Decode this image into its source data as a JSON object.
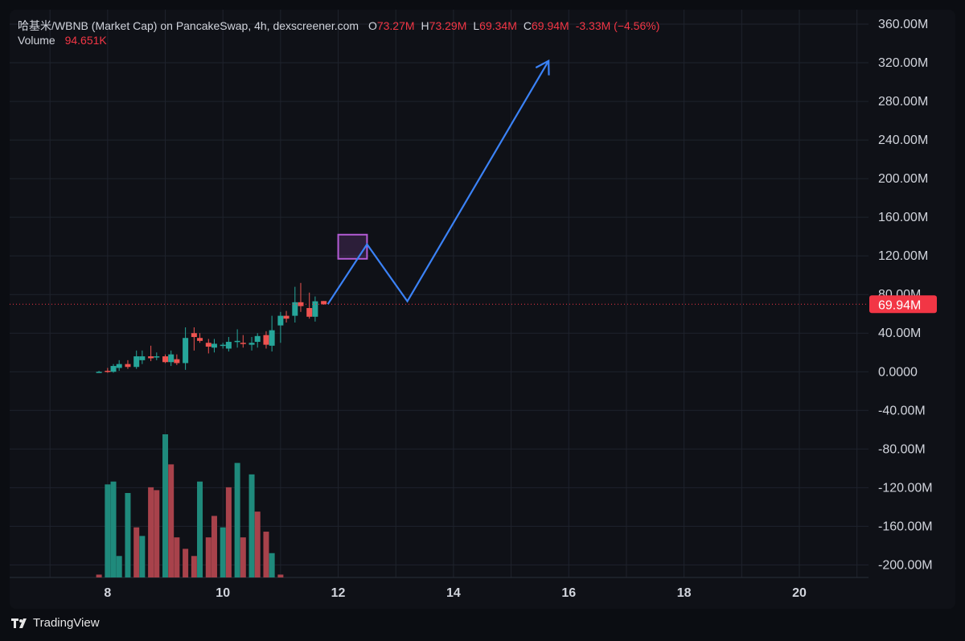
{
  "header": {
    "symbol_line": "哈基米/WBNB (Market Cap) on PancakeSwap, 4h, dexscreener.com",
    "ohlc": [
      {
        "key": "O",
        "value": "73.27M"
      },
      {
        "key": "H",
        "value": "73.29M"
      },
      {
        "key": "L",
        "value": "69.34M"
      },
      {
        "key": "C",
        "value": "69.94M"
      },
      {
        "key": "",
        "value": "-3.33M (−4.56%)"
      }
    ],
    "volume_label": "Volume",
    "volume_value": "94.651K"
  },
  "brand": "TradingView",
  "colors": {
    "up": "#26a69a",
    "down": "#ef5350",
    "volume_up": "#1f8a7c",
    "volume_down": "#a8424b",
    "projection": "#3b82f6",
    "target_box": "#b45cd6",
    "price_marker": "#f23645",
    "grid": "#1f232d",
    "axis_text": "#d1d4dc"
  },
  "chart_data": {
    "type": "candlestick",
    "title": "哈基米/WBNB (Market Cap) on PancakeSwap, 4h, dexscreener.com",
    "x_unit": "day",
    "x_ticks": [
      8,
      10,
      12,
      14,
      16,
      18,
      20
    ],
    "y_ticks": [
      -200,
      -160,
      -120,
      -80,
      -40,
      0,
      40,
      80,
      120,
      160,
      200,
      240,
      280,
      320,
      360
    ],
    "y_tick_labels": [
      "-200.00M",
      "-160.00M",
      "-120.00M",
      "-80.00M",
      "-40.00M",
      "0.0000",
      "40.00M",
      "80.00M",
      "120.00M",
      "160.00M",
      "200.00M",
      "240.00M",
      "280.00M",
      "320.00M",
      "360.00M"
    ],
    "y_unit": "M (market cap)",
    "ylim": [
      -213,
      375
    ],
    "xlim": [
      6.3,
      21.2
    ],
    "grid": true,
    "last_price": {
      "value": 69.94,
      "label": "69.94M"
    },
    "candles": [
      {
        "t": 7.85,
        "o": 0,
        "h": 1,
        "l": -1,
        "c": 0
      },
      {
        "t": 8.0,
        "o": 1,
        "h": 4,
        "l": -1,
        "c": 0
      },
      {
        "t": 8.1,
        "o": 0,
        "h": 8,
        "l": -1,
        "c": 6
      },
      {
        "t": 8.2,
        "o": 4,
        "h": 12,
        "l": 1,
        "c": 8
      },
      {
        "t": 8.35,
        "o": 8,
        "h": 12,
        "l": 3,
        "c": 5
      },
      {
        "t": 8.5,
        "o": 5,
        "h": 22,
        "l": 3,
        "c": 16
      },
      {
        "t": 8.6,
        "o": 12,
        "h": 22,
        "l": 8,
        "c": 16
      },
      {
        "t": 8.75,
        "o": 16,
        "h": 27,
        "l": 11,
        "c": 14
      },
      {
        "t": 8.85,
        "o": 15,
        "h": 20,
        "l": 12,
        "c": 16
      },
      {
        "t": 9.0,
        "o": 16,
        "h": 18,
        "l": 9,
        "c": 10
      },
      {
        "t": 9.1,
        "o": 10,
        "h": 22,
        "l": 6,
        "c": 18
      },
      {
        "t": 9.2,
        "o": 13,
        "h": 18,
        "l": 7,
        "c": 9
      },
      {
        "t": 9.35,
        "o": 9,
        "h": 46,
        "l": 2,
        "c": 35
      },
      {
        "t": 9.5,
        "o": 40,
        "h": 46,
        "l": 22,
        "c": 36
      },
      {
        "t": 9.6,
        "o": 35,
        "h": 40,
        "l": 30,
        "c": 32
      },
      {
        "t": 9.75,
        "o": 30,
        "h": 34,
        "l": 19,
        "c": 26
      },
      {
        "t": 9.85,
        "o": 25,
        "h": 34,
        "l": 20,
        "c": 29
      },
      {
        "t": 10.0,
        "o": 28,
        "h": 30,
        "l": 24,
        "c": 28
      },
      {
        "t": 10.1,
        "o": 24,
        "h": 36,
        "l": 21,
        "c": 31
      },
      {
        "t": 10.25,
        "o": 31,
        "h": 44,
        "l": 25,
        "c": 32
      },
      {
        "t": 10.35,
        "o": 30,
        "h": 38,
        "l": 25,
        "c": 29
      },
      {
        "t": 10.5,
        "o": 28,
        "h": 36,
        "l": 22,
        "c": 30
      },
      {
        "t": 10.6,
        "o": 31,
        "h": 40,
        "l": 25,
        "c": 37
      },
      {
        "t": 10.75,
        "o": 38,
        "h": 42,
        "l": 24,
        "c": 28
      },
      {
        "t": 10.85,
        "o": 27,
        "h": 58,
        "l": 21,
        "c": 43
      },
      {
        "t": 11.0,
        "o": 48,
        "h": 62,
        "l": 30,
        "c": 58
      },
      {
        "t": 11.1,
        "o": 58,
        "h": 63,
        "l": 51,
        "c": 55
      },
      {
        "t": 11.25,
        "o": 58,
        "h": 88,
        "l": 51,
        "c": 72
      },
      {
        "t": 11.35,
        "o": 72,
        "h": 92,
        "l": 62,
        "c": 68
      },
      {
        "t": 11.5,
        "o": 66,
        "h": 82,
        "l": 55,
        "c": 57
      },
      {
        "t": 11.6,
        "o": 57,
        "h": 78,
        "l": 52,
        "c": 73
      },
      {
        "t": 11.75,
        "o": 73.27,
        "h": 73.29,
        "l": 69.34,
        "c": 69.94
      }
    ],
    "volume": {
      "ylim": [
        0,
        100
      ],
      "bars": [
        {
          "t": 7.85,
          "v": 2,
          "dir": "down"
        },
        {
          "t": 8.0,
          "v": 65,
          "dir": "up"
        },
        {
          "t": 8.1,
          "v": 67,
          "dir": "up"
        },
        {
          "t": 8.2,
          "v": 15,
          "dir": "up"
        },
        {
          "t": 8.35,
          "v": 59,
          "dir": "up"
        },
        {
          "t": 8.5,
          "v": 35,
          "dir": "down"
        },
        {
          "t": 8.6,
          "v": 29,
          "dir": "up"
        },
        {
          "t": 8.75,
          "v": 63,
          "dir": "down"
        },
        {
          "t": 8.85,
          "v": 61,
          "dir": "down"
        },
        {
          "t": 9.0,
          "v": 100,
          "dir": "up"
        },
        {
          "t": 9.1,
          "v": 79,
          "dir": "down"
        },
        {
          "t": 9.2,
          "v": 28,
          "dir": "down"
        },
        {
          "t": 9.35,
          "v": 20,
          "dir": "down"
        },
        {
          "t": 9.5,
          "v": 15,
          "dir": "down"
        },
        {
          "t": 9.6,
          "v": 67,
          "dir": "up"
        },
        {
          "t": 9.75,
          "v": 28,
          "dir": "down"
        },
        {
          "t": 9.85,
          "v": 43,
          "dir": "down"
        },
        {
          "t": 10.0,
          "v": 35,
          "dir": "up"
        },
        {
          "t": 10.1,
          "v": 63,
          "dir": "down"
        },
        {
          "t": 10.25,
          "v": 80,
          "dir": "up"
        },
        {
          "t": 10.35,
          "v": 28,
          "dir": "down"
        },
        {
          "t": 10.5,
          "v": 72,
          "dir": "up"
        },
        {
          "t": 10.6,
          "v": 46,
          "dir": "down"
        },
        {
          "t": 10.75,
          "v": 32,
          "dir": "down"
        },
        {
          "t": 10.85,
          "v": 17,
          "dir": "up"
        },
        {
          "t": 11.0,
          "v": 2,
          "dir": "down"
        }
      ]
    },
    "projection_path": [
      {
        "t": 11.82,
        "y": 70
      },
      {
        "t": 12.5,
        "y": 132
      },
      {
        "t": 13.2,
        "y": 73
      },
      {
        "t": 15.65,
        "y": 322
      }
    ],
    "target_box": {
      "t0": 12.0,
      "t1": 12.5,
      "y0": 117,
      "y1": 142
    }
  }
}
